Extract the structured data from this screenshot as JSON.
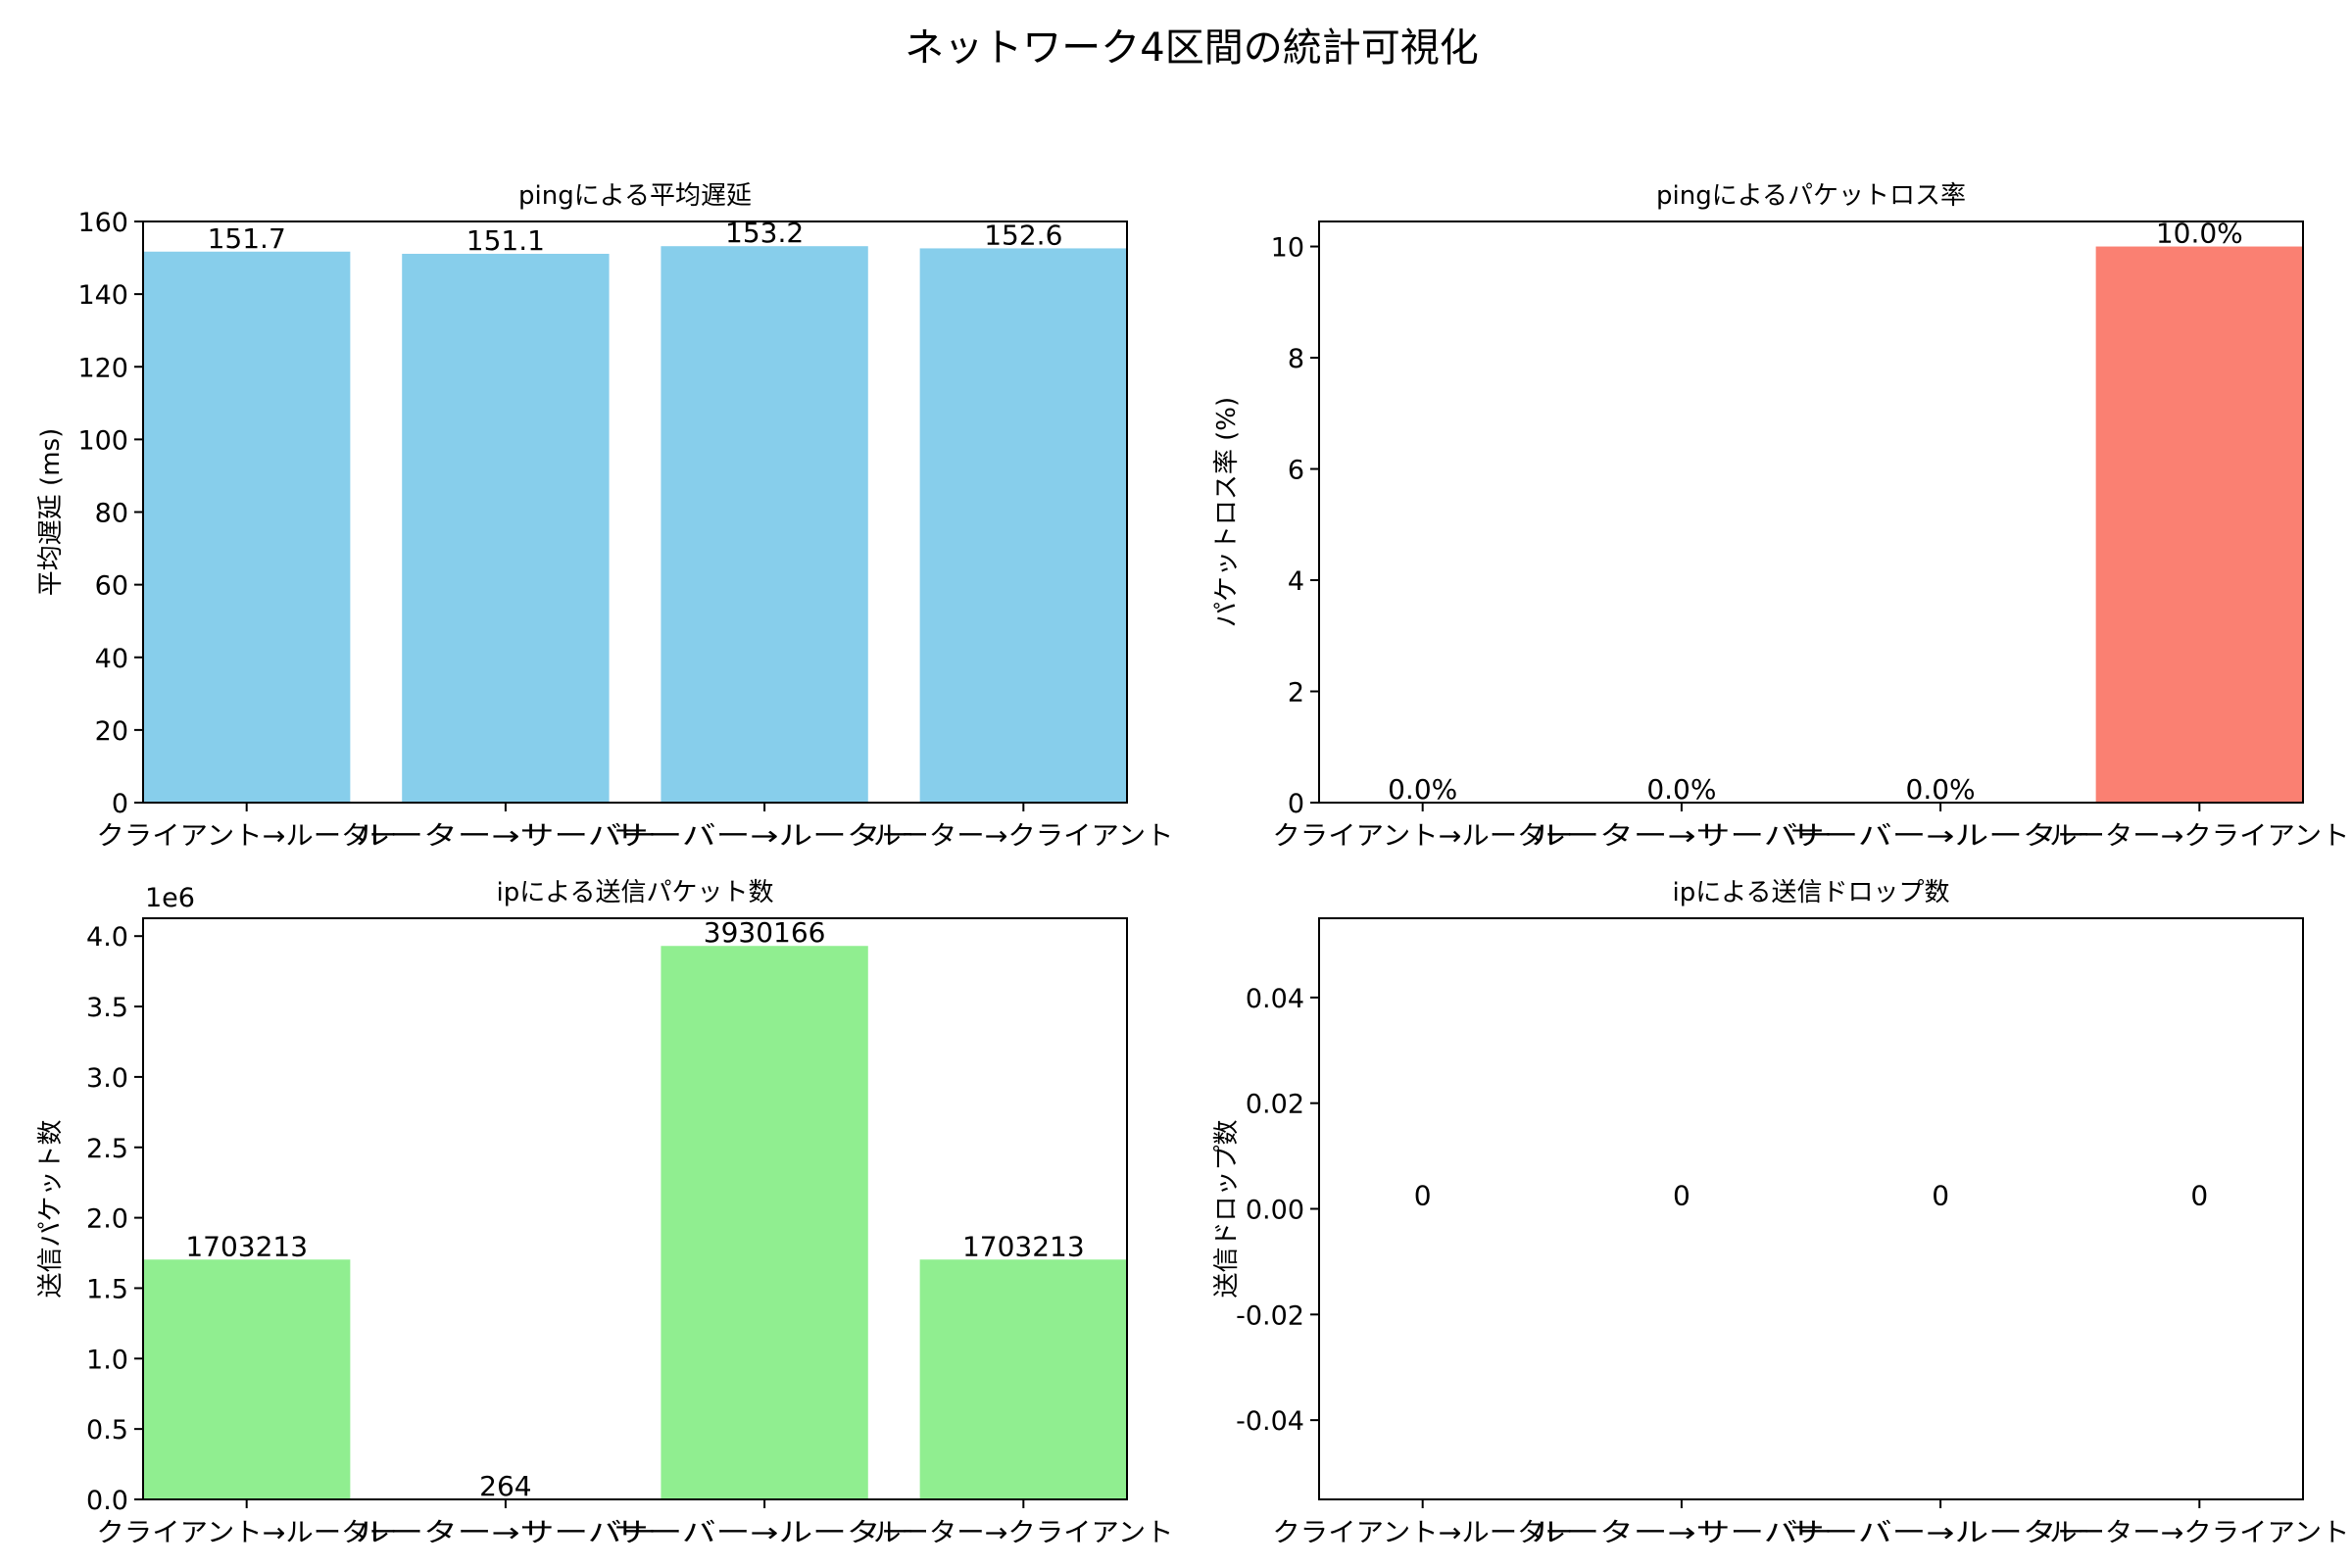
{
  "figure": {
    "title": "ネットワーク4区間の統計可視化"
  },
  "chart_data": [
    {
      "id": "latency",
      "type": "bar",
      "title": "pingによる平均遅延",
      "ylabel": "平均遅延 (ms)",
      "categories": [
        "クライアント→ルーター",
        "ルーター→サーバー",
        "サーバー→ルーター",
        "ルーター→クライアント"
      ],
      "values": [
        151.7,
        151.1,
        153.2,
        152.6
      ],
      "value_labels": [
        "151.7",
        "151.1",
        "153.2",
        "152.6"
      ],
      "ylim": [
        0,
        160
      ],
      "yticks": [
        0,
        20,
        40,
        60,
        80,
        100,
        120,
        140,
        160
      ],
      "ytick_labels": [
        "0",
        "20",
        "40",
        "60",
        "80",
        "100",
        "120",
        "140",
        "160"
      ],
      "color": "#87CEEB",
      "grid": false
    },
    {
      "id": "loss",
      "type": "bar",
      "title": "pingによるパケットロス率",
      "ylabel": "パケットロス率 (%)",
      "categories": [
        "クライアント→ルーター",
        "ルーター→サーバー",
        "サーバー→ルーター",
        "ルーター→クライアント"
      ],
      "values": [
        0,
        0,
        0,
        10.0
      ],
      "value_labels": [
        "0.0%",
        "0.0%",
        "0.0%",
        "10.0%"
      ],
      "ylim": [
        0,
        10.45
      ],
      "yticks": [
        0,
        2,
        4,
        6,
        8,
        10
      ],
      "ytick_labels": [
        "0",
        "2",
        "4",
        "6",
        "8",
        "10"
      ],
      "color": "#FA8072",
      "grid": false
    },
    {
      "id": "packets",
      "type": "bar",
      "title": "ipによる送信パケット数",
      "ylabel": "送信パケット数",
      "offset_label": "1e6",
      "categories": [
        "クライアント→ルーター",
        "ルーター→サーバー",
        "サーバー→ルーター",
        "ルーター→クライアント"
      ],
      "values": [
        1703213,
        264,
        3930166,
        1703213
      ],
      "value_labels": [
        "1703213",
        "264",
        "3930166",
        "1703213"
      ],
      "ylim": [
        0,
        4126674
      ],
      "yticks": [
        0,
        500000,
        1000000,
        1500000,
        2000000,
        2500000,
        3000000,
        3500000,
        4000000
      ],
      "ytick_labels": [
        "0.0",
        "0.5",
        "1.0",
        "1.5",
        "2.0",
        "2.5",
        "3.0",
        "3.5",
        "4.0"
      ],
      "color": "#90EE90",
      "grid": false
    },
    {
      "id": "drops",
      "type": "bar",
      "title": "ipによる送信ドロップ数",
      "ylabel": "送信ドロップ数",
      "categories": [
        "クライアント→ルーター",
        "ルーター→サーバー",
        "サーバー→ルーター",
        "ルーター→クライアント"
      ],
      "values": [
        0,
        0,
        0,
        0
      ],
      "value_labels": [
        "0",
        "0",
        "0",
        "0"
      ],
      "ylim": [
        -0.055,
        0.055
      ],
      "yticks": [
        -0.04,
        -0.02,
        0.0,
        0.02,
        0.04
      ],
      "ytick_labels": [
        "-0.04",
        "-0.02",
        "0.00",
        "0.02",
        "0.04"
      ],
      "color": "#FFA500",
      "grid": false
    }
  ]
}
